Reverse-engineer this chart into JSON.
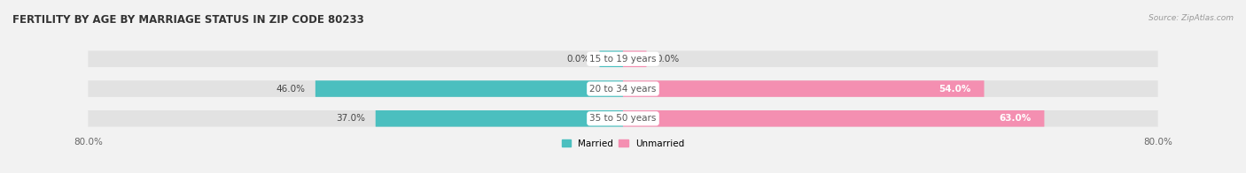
{
  "title": "FERTILITY BY AGE BY MARRIAGE STATUS IN ZIP CODE 80233",
  "source": "Source: ZipAtlas.com",
  "categories": [
    "15 to 19 years",
    "20 to 34 years",
    "35 to 50 years"
  ],
  "married_values": [
    0.0,
    46.0,
    37.0
  ],
  "unmarried_values": [
    0.0,
    54.0,
    63.0
  ],
  "married_color": "#4BBFBF",
  "unmarried_color": "#F48FB1",
  "bar_bg_color": "#E8E8E8",
  "bar_height": 0.52,
  "xlim_left": -80.0,
  "xlim_right": 80.0,
  "title_fontsize": 8.5,
  "label_fontsize": 7.5,
  "axis_fontsize": 7.5,
  "background_color": "#F2F2F2",
  "bar_background_color": "#E2E2E2",
  "small_bar_width": 3.5
}
